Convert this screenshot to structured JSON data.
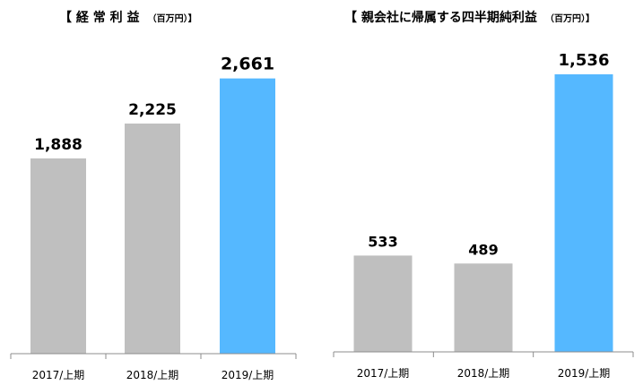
{
  "colors": {
    "gray_bar": "#bfbfbf",
    "highlight_bar": "#55b8ff",
    "axis": "#8c8c8c"
  },
  "chart_data": [
    {
      "type": "bar",
      "title": "【 経 常 利 益",
      "unit": "（百万円）】",
      "categories": [
        "2017/上期",
        "2018/上期",
        "2019/上期"
      ],
      "values": [
        1888,
        2225,
        2661
      ],
      "value_labels": [
        "1,888",
        "2,225",
        "2,661"
      ],
      "highlight_index": 2,
      "ylim": [
        0,
        2900
      ],
      "grid": false
    },
    {
      "type": "bar",
      "title": "【 親会社に帰属する四半期純利益",
      "unit": "（百万円）】",
      "categories": [
        "2017/上期",
        "2018/上期",
        "2019/上期"
      ],
      "values": [
        533,
        489,
        1536
      ],
      "value_labels": [
        "533",
        "489",
        "1,536"
      ],
      "highlight_index": 2,
      "ylim": [
        0,
        1650
      ],
      "grid": false
    }
  ]
}
